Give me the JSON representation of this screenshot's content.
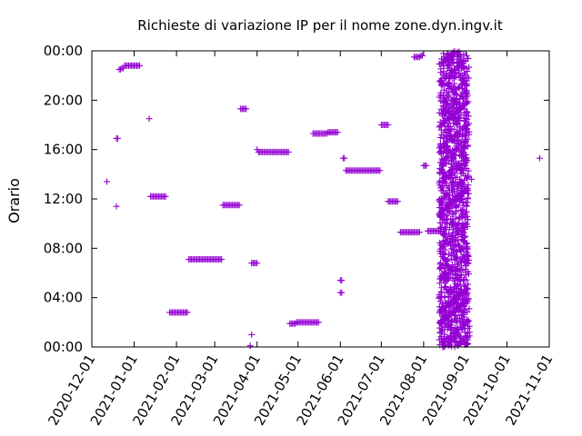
{
  "chart_data": {
    "type": "scatter",
    "title": "Richieste di variazione IP per il nome zone.dyn.ingv.it",
    "xlabel": "",
    "ylabel": "Orario",
    "xlim": [
      "2020-12-01",
      "2021-11-01"
    ],
    "ylim": [
      0,
      24
    ],
    "x_ticks": [
      "2020-12-01",
      "2021-01-01",
      "2021-02-01",
      "2021-03-01",
      "2021-04-01",
      "2021-05-01",
      "2021-06-01",
      "2021-07-01",
      "2021-08-01",
      "2021-09-01",
      "2021-10-01",
      "2021-11-01"
    ],
    "y_ticks": [
      "00:00",
      "04:00",
      "08:00",
      "12:00",
      "16:00",
      "20:00",
      "00:00"
    ],
    "y_tick_values": [
      0,
      4,
      8,
      12,
      16,
      20,
      24
    ],
    "grid": false,
    "marker": "+",
    "color": "#9400d3",
    "points": [
      [
        "2020-12-12",
        13.4
      ],
      [
        "2020-12-19",
        11.4
      ],
      [
        "2020-12-19",
        16.9
      ],
      [
        "2020-12-20",
        16.9
      ],
      [
        "2020-12-21",
        22.5
      ],
      [
        "2020-12-22",
        22.5
      ],
      [
        "2020-12-23",
        22.6
      ],
      [
        "2020-12-24",
        22.6
      ],
      [
        "2020-12-25",
        22.8
      ],
      [
        "2020-12-26",
        22.8
      ],
      [
        "2020-12-27",
        22.8
      ],
      [
        "2020-12-28",
        22.8
      ],
      [
        "2020-12-29",
        22.8
      ],
      [
        "2020-12-30",
        22.8
      ],
      [
        "2020-12-31",
        22.8
      ],
      [
        "2021-01-01",
        22.8
      ],
      [
        "2021-01-02",
        22.8
      ],
      [
        "2021-01-03",
        22.8
      ],
      [
        "2021-01-04",
        22.8
      ],
      [
        "2021-01-05",
        22.8
      ],
      [
        "2021-01-12",
        18.5
      ],
      [
        "2021-01-13",
        12.2
      ],
      [
        "2021-01-14",
        12.2
      ],
      [
        "2021-01-15",
        12.2
      ],
      [
        "2021-01-16",
        12.2
      ],
      [
        "2021-01-17",
        12.2
      ],
      [
        "2021-01-18",
        12.2
      ],
      [
        "2021-01-19",
        12.2
      ],
      [
        "2021-01-20",
        12.2
      ],
      [
        "2021-01-21",
        12.2
      ],
      [
        "2021-01-22",
        12.2
      ],
      [
        "2021-01-23",
        12.2
      ],
      [
        "2021-01-24",
        12.2
      ],
      [
        "2021-01-27",
        2.8
      ],
      [
        "2021-01-28",
        2.8
      ],
      [
        "2021-01-29",
        2.8
      ],
      [
        "2021-01-30",
        2.8
      ],
      [
        "2021-01-31",
        2.8
      ],
      [
        "2021-02-01",
        2.8
      ],
      [
        "2021-02-02",
        2.8
      ],
      [
        "2021-02-03",
        2.8
      ],
      [
        "2021-02-04",
        2.8
      ],
      [
        "2021-02-05",
        2.8
      ],
      [
        "2021-02-06",
        2.8
      ],
      [
        "2021-02-07",
        2.8
      ],
      [
        "2021-02-08",
        2.8
      ],
      [
        "2021-02-09",
        2.8
      ],
      [
        "2021-02-10",
        7.1
      ],
      [
        "2021-02-11",
        7.1
      ],
      [
        "2021-02-12",
        7.1
      ],
      [
        "2021-02-13",
        7.1
      ],
      [
        "2021-02-14",
        7.1
      ],
      [
        "2021-02-15",
        7.1
      ],
      [
        "2021-02-16",
        7.1
      ],
      [
        "2021-02-17",
        7.1
      ],
      [
        "2021-02-18",
        7.1
      ],
      [
        "2021-02-19",
        7.1
      ],
      [
        "2021-02-20",
        7.1
      ],
      [
        "2021-02-21",
        7.1
      ],
      [
        "2021-02-22",
        7.1
      ],
      [
        "2021-02-23",
        7.1
      ],
      [
        "2021-02-24",
        7.1
      ],
      [
        "2021-02-25",
        7.1
      ],
      [
        "2021-02-26",
        7.1
      ],
      [
        "2021-02-27",
        7.1
      ],
      [
        "2021-02-28",
        7.1
      ],
      [
        "2021-03-01",
        7.1
      ],
      [
        "2021-03-02",
        7.1
      ],
      [
        "2021-03-03",
        7.1
      ],
      [
        "2021-03-04",
        7.1
      ],
      [
        "2021-03-05",
        7.1
      ],
      [
        "2021-03-06",
        7.1
      ],
      [
        "2021-03-07",
        11.5
      ],
      [
        "2021-03-08",
        11.5
      ],
      [
        "2021-03-09",
        11.5
      ],
      [
        "2021-03-10",
        11.5
      ],
      [
        "2021-03-11",
        11.5
      ],
      [
        "2021-03-12",
        11.5
      ],
      [
        "2021-03-13",
        11.5
      ],
      [
        "2021-03-14",
        11.5
      ],
      [
        "2021-03-15",
        11.5
      ],
      [
        "2021-03-16",
        11.5
      ],
      [
        "2021-03-17",
        11.5
      ],
      [
        "2021-03-18",
        11.5
      ],
      [
        "2021-03-19",
        11.5
      ],
      [
        "2021-03-20",
        19.3
      ],
      [
        "2021-03-21",
        19.3
      ],
      [
        "2021-03-22",
        19.3
      ],
      [
        "2021-03-23",
        19.3
      ],
      [
        "2021-03-24",
        19.3
      ],
      [
        "2021-03-27",
        0.1
      ],
      [
        "2021-03-28",
        1.0
      ],
      [
        "2021-03-28",
        6.8
      ],
      [
        "2021-03-29",
        6.8
      ],
      [
        "2021-03-30",
        6.8
      ],
      [
        "2021-03-31",
        6.8
      ],
      [
        "2021-04-01",
        6.8
      ],
      [
        "2021-04-01",
        16.0
      ],
      [
        "2021-04-02",
        15.8
      ],
      [
        "2021-04-03",
        15.8
      ],
      [
        "2021-04-04",
        15.8
      ],
      [
        "2021-04-05",
        15.8
      ],
      [
        "2021-04-06",
        15.8
      ],
      [
        "2021-04-07",
        15.8
      ],
      [
        "2021-04-08",
        15.8
      ],
      [
        "2021-04-09",
        15.8
      ],
      [
        "2021-04-10",
        15.8
      ],
      [
        "2021-04-11",
        15.8
      ],
      [
        "2021-04-12",
        15.8
      ],
      [
        "2021-04-13",
        15.8
      ],
      [
        "2021-04-14",
        15.8
      ],
      [
        "2021-04-15",
        15.8
      ],
      [
        "2021-04-16",
        15.8
      ],
      [
        "2021-04-17",
        15.8
      ],
      [
        "2021-04-18",
        15.8
      ],
      [
        "2021-04-19",
        15.8
      ],
      [
        "2021-04-20",
        15.8
      ],
      [
        "2021-04-21",
        15.8
      ],
      [
        "2021-04-22",
        15.8
      ],
      [
        "2021-04-23",
        15.8
      ],
      [
        "2021-04-24",
        15.8
      ],
      [
        "2021-04-25",
        1.9
      ],
      [
        "2021-04-26",
        1.9
      ],
      [
        "2021-04-27",
        1.9
      ],
      [
        "2021-04-28",
        1.9
      ],
      [
        "2021-04-29",
        1.9
      ],
      [
        "2021-04-30",
        2.0
      ],
      [
        "2021-05-01",
        2.0
      ],
      [
        "2021-05-02",
        2.0
      ],
      [
        "2021-05-03",
        2.0
      ],
      [
        "2021-05-04",
        2.0
      ],
      [
        "2021-05-05",
        2.0
      ],
      [
        "2021-05-06",
        2.0
      ],
      [
        "2021-05-07",
        2.0
      ],
      [
        "2021-05-08",
        2.0
      ],
      [
        "2021-05-09",
        2.0
      ],
      [
        "2021-05-10",
        2.0
      ],
      [
        "2021-05-11",
        2.0
      ],
      [
        "2021-05-12",
        2.0
      ],
      [
        "2021-05-13",
        2.0
      ],
      [
        "2021-05-14",
        2.0
      ],
      [
        "2021-05-15",
        2.0
      ],
      [
        "2021-05-16",
        2.0
      ],
      [
        "2021-05-12",
        17.3
      ],
      [
        "2021-05-13",
        17.3
      ],
      [
        "2021-05-14",
        17.3
      ],
      [
        "2021-05-15",
        17.3
      ],
      [
        "2021-05-16",
        17.3
      ],
      [
        "2021-05-17",
        17.3
      ],
      [
        "2021-05-18",
        17.3
      ],
      [
        "2021-05-19",
        17.3
      ],
      [
        "2021-05-20",
        17.3
      ],
      [
        "2021-05-21",
        17.3
      ],
      [
        "2021-05-22",
        17.3
      ],
      [
        "2021-05-23",
        17.4
      ],
      [
        "2021-05-24",
        17.4
      ],
      [
        "2021-05-25",
        17.4
      ],
      [
        "2021-05-26",
        17.4
      ],
      [
        "2021-05-27",
        17.4
      ],
      [
        "2021-05-28",
        17.4
      ],
      [
        "2021-05-29",
        17.4
      ],
      [
        "2021-05-30",
        17.4
      ],
      [
        "2021-06-01",
        4.4
      ],
      [
        "2021-06-02",
        4.4
      ],
      [
        "2021-06-01",
        5.4
      ],
      [
        "2021-06-02",
        5.4
      ],
      [
        "2021-06-03",
        15.3
      ],
      [
        "2021-06-04",
        15.3
      ],
      [
        "2021-06-05",
        14.3
      ],
      [
        "2021-06-06",
        14.3
      ],
      [
        "2021-06-07",
        14.3
      ],
      [
        "2021-06-08",
        14.3
      ],
      [
        "2021-06-09",
        14.3
      ],
      [
        "2021-06-10",
        14.3
      ],
      [
        "2021-06-11",
        14.3
      ],
      [
        "2021-06-12",
        14.3
      ],
      [
        "2021-06-13",
        14.3
      ],
      [
        "2021-06-14",
        14.3
      ],
      [
        "2021-06-15",
        14.3
      ],
      [
        "2021-06-16",
        14.3
      ],
      [
        "2021-06-17",
        14.3
      ],
      [
        "2021-06-18",
        14.3
      ],
      [
        "2021-06-19",
        14.3
      ],
      [
        "2021-06-20",
        14.3
      ],
      [
        "2021-06-21",
        14.3
      ],
      [
        "2021-06-22",
        14.3
      ],
      [
        "2021-06-23",
        14.3
      ],
      [
        "2021-06-24",
        14.3
      ],
      [
        "2021-06-25",
        14.3
      ],
      [
        "2021-06-26",
        14.3
      ],
      [
        "2021-06-27",
        14.3
      ],
      [
        "2021-06-28",
        14.3
      ],
      [
        "2021-06-29",
        14.3
      ],
      [
        "2021-06-30",
        14.3
      ],
      [
        "2021-07-01",
        18.0
      ],
      [
        "2021-07-02",
        18.0
      ],
      [
        "2021-07-03",
        18.0
      ],
      [
        "2021-07-04",
        18.0
      ],
      [
        "2021-07-05",
        18.0
      ],
      [
        "2021-07-06",
        18.0
      ],
      [
        "2021-07-06",
        11.8
      ],
      [
        "2021-07-07",
        11.8
      ],
      [
        "2021-07-08",
        11.8
      ],
      [
        "2021-07-09",
        11.8
      ],
      [
        "2021-07-10",
        11.8
      ],
      [
        "2021-07-11",
        11.8
      ],
      [
        "2021-07-12",
        11.8
      ],
      [
        "2021-07-13",
        11.8
      ],
      [
        "2021-07-15",
        9.3
      ],
      [
        "2021-07-16",
        9.3
      ],
      [
        "2021-07-17",
        9.3
      ],
      [
        "2021-07-18",
        9.3
      ],
      [
        "2021-07-19",
        9.3
      ],
      [
        "2021-07-20",
        9.3
      ],
      [
        "2021-07-21",
        9.3
      ],
      [
        "2021-07-22",
        9.3
      ],
      [
        "2021-07-23",
        9.3
      ],
      [
        "2021-07-24",
        9.3
      ],
      [
        "2021-07-25",
        9.3
      ],
      [
        "2021-07-26",
        9.3
      ],
      [
        "2021-07-27",
        9.3
      ],
      [
        "2021-07-28",
        9.3
      ],
      [
        "2021-07-29",
        9.3
      ],
      [
        "2021-07-25",
        23.5
      ],
      [
        "2021-07-26",
        23.5
      ],
      [
        "2021-07-27",
        23.5
      ],
      [
        "2021-07-28",
        23.5
      ],
      [
        "2021-07-29",
        23.5
      ],
      [
        "2021-07-30",
        23.6
      ],
      [
        "2021-07-31",
        23.6
      ],
      [
        "2021-08-01",
        14.7
      ],
      [
        "2021-08-02",
        14.7
      ],
      [
        "2021-08-03",
        14.7
      ],
      [
        "2021-08-04",
        9.4
      ],
      [
        "2021-08-05",
        9.4
      ],
      [
        "2021-08-06",
        9.4
      ],
      [
        "2021-08-07",
        9.4
      ],
      [
        "2021-08-08",
        9.4
      ],
      [
        "2021-08-09",
        9.4
      ],
      [
        "2021-08-10",
        9.4
      ],
      [
        "2021-08-11",
        9.4
      ],
      [
        "2021-08-12",
        9.4
      ],
      [
        "2021-08-13",
        9.4
      ],
      [
        "2021-09-05",
        13.6
      ],
      [
        "2021-10-25",
        15.3
      ]
    ],
    "dense_band": {
      "x_range": [
        "2021-08-13",
        "2021-09-03"
      ],
      "y_range": [
        0,
        24
      ],
      "description": "many requests per day covering all hours"
    }
  }
}
